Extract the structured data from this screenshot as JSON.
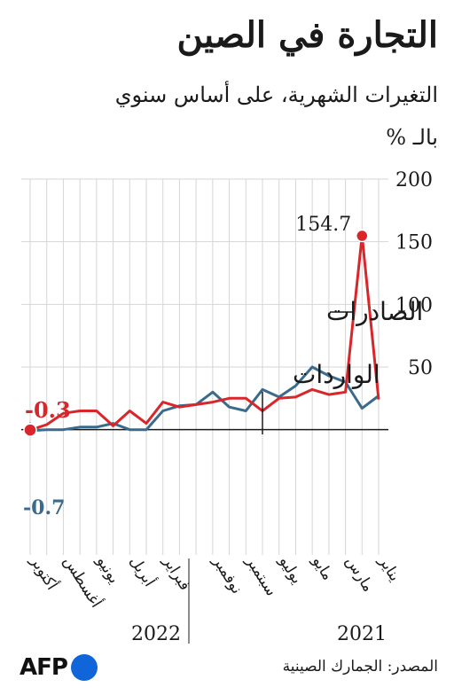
{
  "header": {
    "title": "التجارة في الصين",
    "subtitle": "التغيرات الشهرية، على أساس سنوي",
    "unit": "بالـ %"
  },
  "footer": {
    "source": "المصدر: الجمارك الصينية",
    "logo_text": "AFP"
  },
  "chart_data": {
    "type": "line",
    "categories": [
      "يناير",
      "فبراير",
      "مارس",
      "أبريل",
      "مايو",
      "يونيو",
      "يوليو",
      "أغسطس",
      "سبتمبر",
      "أكتوبر",
      "نوفمبر",
      "ديسمبر",
      "يناير",
      "فبراير",
      "مارس",
      "أبريل",
      "مايو",
      "يونيو",
      "يوليو",
      "أغسطس",
      "سبتمبر",
      "أكتوبر"
    ],
    "tick_labels": [
      "يناير",
      "مارس",
      "مايو",
      "يوليو",
      "سبتمبر",
      "نوفمبر",
      "فبراير",
      "أبريل",
      "يونيو",
      "أغسطس",
      "أكتوبر"
    ],
    "years": [
      "2021",
      "2022"
    ],
    "ylim": [
      -100,
      200
    ],
    "y_ticks": [
      50,
      100,
      150,
      200
    ],
    "series": [
      {
        "name": "الصادرات",
        "color": "#d9262b",
        "values": [
          24,
          154.7,
          30,
          28,
          32,
          26,
          25,
          15,
          25,
          25,
          22,
          20,
          18,
          22,
          5,
          15,
          3,
          15,
          15,
          13,
          4,
          -0.3
        ]
      },
      {
        "name": "الواردات",
        "color": "#3a6a8c",
        "values": [
          27,
          17,
          38,
          43,
          50,
          35,
          26,
          32,
          15,
          18,
          30,
          20,
          19,
          15,
          0,
          0,
          5,
          2,
          2,
          0,
          0,
          -0.7
        ]
      }
    ],
    "annotations": {
      "exports_peak": "154.7",
      "exports_last": "-0.3",
      "imports_last": "-0.7"
    }
  }
}
